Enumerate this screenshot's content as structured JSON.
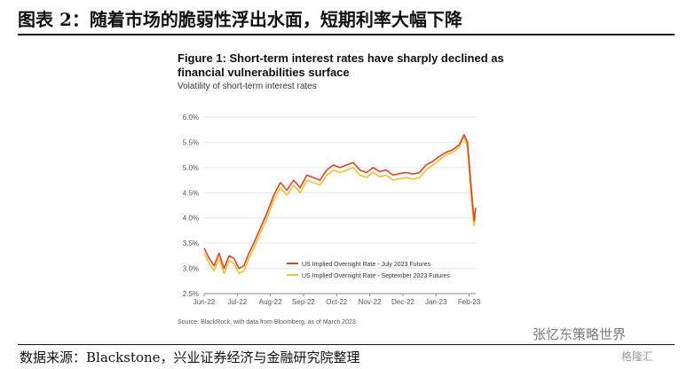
{
  "header": {
    "title": "图表 2：随着市场的脆弱性浮出水面，短期利率大幅下降"
  },
  "figure": {
    "title": "Figure 1: Short-term interest rates have sharply declined as financial vulnerabilities surface",
    "subtitle": "Volatility of short-term interest rates",
    "source": "Source: BlackRock, with data from Bloomberg, as of March 2023."
  },
  "footer": {
    "source": "数据来源：Blackstone，兴业证券经济与金融研究院整理"
  },
  "watermark": {
    "text": "张忆东策略世界",
    "logo_text": "格隆汇"
  },
  "colors": {
    "july": "#d9432a",
    "sept": "#f2c12e",
    "grid": "#e6e6e6",
    "axis": "#555555"
  },
  "chart_data": {
    "type": "line",
    "x_labels": [
      "Jun-22",
      "Jul-22",
      "Aug-22",
      "Sep-22",
      "Oct-22",
      "Nov-22",
      "Dec-22",
      "Jan-23",
      "Feb-23"
    ],
    "ylim": [
      2.5,
      6.0
    ],
    "y_ticks": [
      "2.5%",
      "3.0%",
      "3.5%",
      "4.0%",
      "4.5%",
      "5.0%",
      "5.5%",
      "6.0%"
    ],
    "y_tick_values": [
      2.5,
      3.0,
      3.5,
      4.0,
      4.5,
      5.0,
      5.5,
      6.0
    ],
    "legend_position": "bottom-left",
    "series": [
      {
        "name": "US Implied Overnight Rate - July 2023 Futures",
        "color": "july",
        "x": [
          0,
          0.15,
          0.3,
          0.45,
          0.6,
          0.75,
          0.9,
          1.05,
          1.2,
          1.35,
          1.5,
          1.7,
          1.9,
          2.1,
          2.3,
          2.5,
          2.7,
          2.9,
          3.1,
          3.3,
          3.5,
          3.7,
          3.9,
          4.1,
          4.3,
          4.5,
          4.7,
          4.9,
          5.1,
          5.3,
          5.5,
          5.7,
          5.9,
          6.1,
          6.3,
          6.5,
          6.7,
          6.9,
          7.1,
          7.3,
          7.5,
          7.7,
          7.85,
          7.95,
          8.05,
          8.15,
          8.2
        ],
        "values": [
          3.4,
          3.2,
          3.05,
          3.3,
          3.0,
          3.25,
          3.2,
          3.0,
          3.05,
          3.3,
          3.5,
          3.8,
          4.1,
          4.45,
          4.7,
          4.55,
          4.75,
          4.6,
          4.85,
          4.8,
          4.75,
          4.95,
          5.05,
          5.0,
          5.05,
          5.1,
          4.95,
          4.9,
          5.0,
          4.92,
          4.95,
          4.85,
          4.88,
          4.9,
          4.87,
          4.9,
          5.05,
          5.12,
          5.22,
          5.3,
          5.35,
          5.45,
          5.65,
          5.5,
          4.7,
          3.95,
          4.2
        ]
      },
      {
        "name": "US Implied Overnight Rate - September 2023 Futures",
        "color": "sept",
        "x": [
          0,
          0.15,
          0.3,
          0.45,
          0.6,
          0.75,
          0.9,
          1.05,
          1.2,
          1.35,
          1.5,
          1.7,
          1.9,
          2.1,
          2.3,
          2.5,
          2.7,
          2.9,
          3.1,
          3.3,
          3.5,
          3.7,
          3.9,
          4.1,
          4.3,
          4.5,
          4.7,
          4.9,
          5.1,
          5.3,
          5.5,
          5.7,
          5.9,
          6.1,
          6.3,
          6.5,
          6.7,
          6.9,
          7.1,
          7.3,
          7.5,
          7.7,
          7.85,
          7.95,
          8.05,
          8.15,
          8.2
        ],
        "values": [
          3.3,
          3.1,
          2.95,
          3.2,
          2.9,
          3.15,
          3.1,
          2.9,
          2.95,
          3.2,
          3.4,
          3.7,
          4.0,
          4.35,
          4.6,
          4.45,
          4.65,
          4.5,
          4.75,
          4.7,
          4.65,
          4.85,
          4.95,
          4.9,
          4.95,
          5.0,
          4.85,
          4.8,
          4.9,
          4.82,
          4.85,
          4.75,
          4.78,
          4.8,
          4.77,
          4.8,
          4.95,
          5.05,
          5.15,
          5.25,
          5.3,
          5.4,
          5.62,
          5.4,
          4.5,
          3.85,
          4.05
        ]
      }
    ]
  }
}
